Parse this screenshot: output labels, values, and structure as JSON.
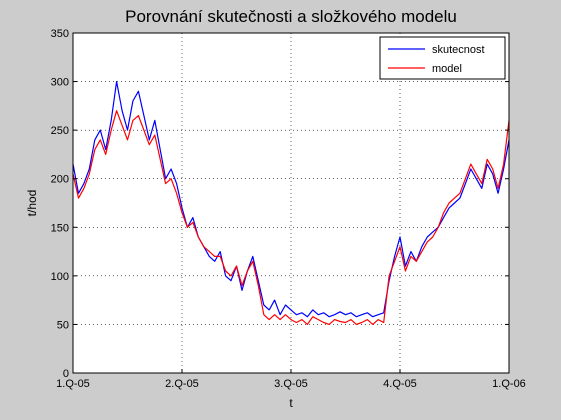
{
  "chart_data": {
    "type": "line",
    "title": "Porovnání skutečnosti a složkového modelu",
    "xlabel": "t",
    "ylabel": "t/hod",
    "ylim": [
      0,
      350
    ],
    "yticks": [
      0,
      50,
      100,
      150,
      200,
      250,
      300,
      350
    ],
    "xticks": [
      "1.Q-05",
      "2.Q-05",
      "3.Q-05",
      "4.Q-05",
      "1.Q-06"
    ],
    "xlim": [
      0,
      4
    ],
    "grid": true,
    "legend_position": "top-right",
    "series": [
      {
        "name": "skutecnost",
        "color": "#0000ff",
        "x": [
          0,
          0.05,
          0.1,
          0.15,
          0.2,
          0.25,
          0.3,
          0.35,
          0.4,
          0.45,
          0.5,
          0.55,
          0.6,
          0.65,
          0.7,
          0.75,
          0.8,
          0.85,
          0.9,
          0.95,
          1.0,
          1.05,
          1.1,
          1.15,
          1.2,
          1.25,
          1.3,
          1.35,
          1.4,
          1.45,
          1.5,
          1.55,
          1.6,
          1.65,
          1.7,
          1.75,
          1.8,
          1.85,
          1.9,
          1.95,
          2.0,
          2.05,
          2.1,
          2.15,
          2.2,
          2.25,
          2.3,
          2.35,
          2.4,
          2.45,
          2.5,
          2.55,
          2.6,
          2.65,
          2.7,
          2.75,
          2.8,
          2.85,
          2.9,
          2.95,
          3.0,
          3.05,
          3.1,
          3.15,
          3.2,
          3.25,
          3.3,
          3.35,
          3.4,
          3.45,
          3.5,
          3.55,
          3.6,
          3.65,
          3.7,
          3.75,
          3.8,
          3.85,
          3.9,
          3.95,
          4.0
        ],
        "y": [
          215,
          185,
          195,
          210,
          240,
          250,
          230,
          260,
          300,
          270,
          250,
          280,
          290,
          265,
          240,
          260,
          230,
          200,
          210,
          195,
          170,
          150,
          160,
          140,
          130,
          120,
          115,
          125,
          100,
          95,
          110,
          85,
          105,
          120,
          95,
          70,
          65,
          75,
          60,
          70,
          65,
          60,
          62,
          58,
          65,
          60,
          62,
          58,
          60,
          63,
          60,
          62,
          58,
          60,
          62,
          58,
          60,
          62,
          95,
          120,
          140,
          110,
          125,
          115,
          130,
          140,
          145,
          150,
          160,
          170,
          175,
          180,
          195,
          210,
          200,
          190,
          215,
          205,
          185,
          210,
          240
        ]
      },
      {
        "name": "model",
        "color": "#ff0000",
        "x": [
          0,
          0.05,
          0.1,
          0.15,
          0.2,
          0.25,
          0.3,
          0.35,
          0.4,
          0.45,
          0.5,
          0.55,
          0.6,
          0.65,
          0.7,
          0.75,
          0.8,
          0.85,
          0.9,
          0.95,
          1.0,
          1.05,
          1.1,
          1.15,
          1.2,
          1.25,
          1.3,
          1.35,
          1.4,
          1.45,
          1.5,
          1.55,
          1.6,
          1.65,
          1.7,
          1.75,
          1.8,
          1.85,
          1.9,
          1.95,
          2.0,
          2.05,
          2.1,
          2.15,
          2.2,
          2.25,
          2.3,
          2.35,
          2.4,
          2.45,
          2.5,
          2.55,
          2.6,
          2.65,
          2.7,
          2.75,
          2.8,
          2.85,
          2.9,
          2.95,
          3.0,
          3.05,
          3.1,
          3.15,
          3.2,
          3.25,
          3.3,
          3.35,
          3.4,
          3.45,
          3.5,
          3.55,
          3.6,
          3.65,
          3.7,
          3.75,
          3.8,
          3.85,
          3.9,
          3.95,
          4.0
        ],
        "y": [
          205,
          180,
          190,
          205,
          230,
          240,
          225,
          250,
          270,
          255,
          240,
          260,
          265,
          250,
          235,
          245,
          220,
          195,
          200,
          185,
          165,
          150,
          155,
          140,
          130,
          125,
          120,
          120,
          105,
          100,
          110,
          90,
          105,
          115,
          90,
          60,
          55,
          60,
          55,
          60,
          55,
          52,
          55,
          50,
          58,
          55,
          52,
          50,
          55,
          53,
          52,
          55,
          50,
          52,
          55,
          50,
          55,
          52,
          100,
          115,
          130,
          105,
          120,
          115,
          125,
          135,
          140,
          150,
          165,
          175,
          180,
          185,
          200,
          215,
          205,
          195,
          220,
          210,
          190,
          215,
          260
        ]
      }
    ]
  }
}
